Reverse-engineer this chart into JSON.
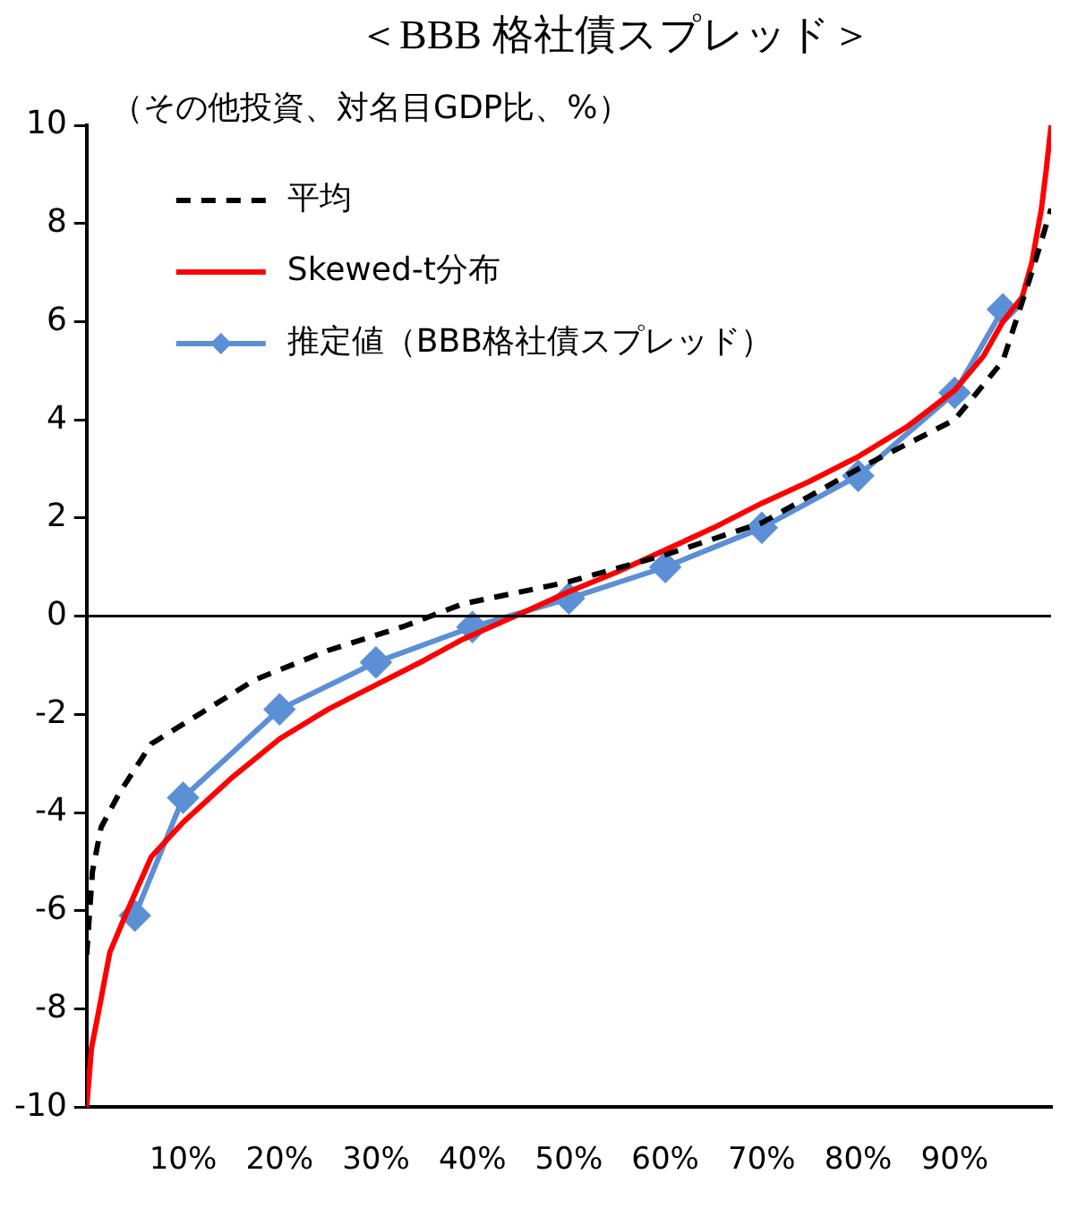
{
  "chart_data": {
    "type": "line",
    "title": "＜BBB 格社債スプレッド＞",
    "ylabel": "（その他投資、対名目GDP比、%）",
    "xlim": [
      0,
      100
    ],
    "xticks": [
      {
        "value": 10,
        "label": "10%"
      },
      {
        "value": 20,
        "label": "20%"
      },
      {
        "value": 30,
        "label": "30%"
      },
      {
        "value": 40,
        "label": "40%"
      },
      {
        "value": 50,
        "label": "50%"
      },
      {
        "value": 60,
        "label": "60%"
      },
      {
        "value": 70,
        "label": "70%"
      },
      {
        "value": 80,
        "label": "80%"
      },
      {
        "value": 90,
        "label": "90%"
      }
    ],
    "ylim": [
      -10,
      10
    ],
    "yticks": [
      -10,
      -8,
      -6,
      -4,
      -2,
      0,
      2,
      4,
      6,
      8,
      10
    ],
    "grid": false,
    "legend": "top left",
    "ref_lines": [
      {
        "axis": "y",
        "value": 0,
        "color": "#000000"
      }
    ],
    "series": [
      {
        "name": "平均",
        "color": "#000000",
        "line_style": "dashed",
        "marker": "none",
        "x": [
          0,
          0.6,
          1.5,
          3.4,
          6.7,
          10,
          17.4,
          25,
          33,
          39,
          50,
          60,
          70,
          80,
          90,
          95,
          98,
          100
        ],
        "values": [
          -6.9,
          -5.2,
          -4.3,
          -3.6,
          -2.6,
          -2.2,
          -1.3,
          -0.7,
          -0.2,
          0.25,
          0.7,
          1.25,
          1.9,
          3.0,
          4.0,
          5.2,
          7.0,
          8.3
        ]
      },
      {
        "name": "Skewed-t分布",
        "color": "#ff0000",
        "line_style": "solid",
        "marker": "none",
        "x": [
          0,
          0.5,
          1.1,
          2.4,
          4,
          6.7,
          10,
          15,
          20,
          25,
          30,
          35,
          39,
          45,
          50,
          55,
          60,
          65,
          70,
          75,
          80,
          85,
          90,
          93,
          95,
          97,
          98,
          99,
          99.5,
          100
        ],
        "values": [
          -10,
          -8.8,
          -8.2,
          -6.85,
          -6.1,
          -4.9,
          -4.2,
          -3.3,
          -2.5,
          -1.9,
          -1.4,
          -0.9,
          -0.47,
          0.05,
          0.5,
          0.9,
          1.35,
          1.8,
          2.3,
          2.75,
          3.25,
          3.85,
          4.6,
          5.3,
          6.0,
          6.5,
          7.2,
          8.3,
          9.1,
          10
        ]
      },
      {
        "name": "推定値（BBB格社債スプレッド）",
        "color": "#5b8fd6",
        "line_style": "solid",
        "marker": "diamond",
        "x": [
          5,
          10,
          20,
          30,
          40,
          50,
          60,
          70,
          80,
          90,
          95
        ],
        "values": [
          -6.1,
          -3.7,
          -1.9,
          -0.94,
          -0.22,
          0.36,
          1.0,
          1.8,
          2.86,
          4.55,
          6.25
        ]
      }
    ]
  }
}
